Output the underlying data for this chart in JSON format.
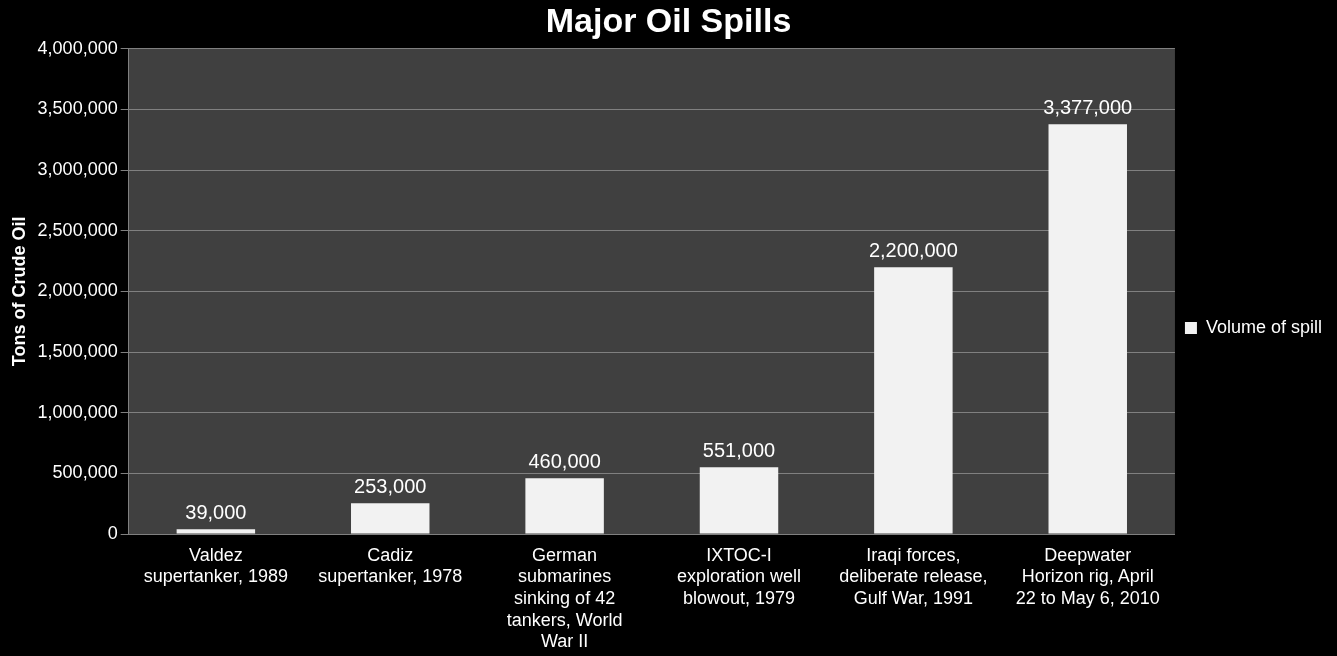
{
  "chart_data": {
    "type": "bar",
    "title": "Major Oil Spills",
    "ylabel": "Tons of Crude Oil",
    "categories": [
      "Valdez supertanker, 1989",
      "Cadiz supertanker, 1978",
      "German submarines sinking of 42 tankers, World War II",
      "IXTOC-I exploration well blowout, 1979",
      "Iraqi forces, deliberate release, Gulf War, 1991",
      "Deepwater Horizon rig, April 22 to May 6, 2010"
    ],
    "series": [
      {
        "name": "Volume of spill",
        "color": "#f2f2f2",
        "values": [
          39000,
          253000,
          460000,
          551000,
          2200000,
          3377000
        ],
        "value_labels": [
          "39,000",
          "253,000",
          "460,000",
          "551,000",
          "2,200,000",
          "3,377,000"
        ]
      }
    ],
    "ylim": [
      0,
      4000000
    ],
    "yticks": [
      0,
      {
        "value": 500000,
        "label": "500,000"
      },
      {
        "value": 1000000,
        "label": "1,000,000"
      },
      {
        "value": 1500000,
        "label": "1,500,000"
      },
      {
        "value": 2000000,
        "label": "2,000,000"
      },
      {
        "value": 2500000,
        "label": "2,500,000"
      },
      {
        "value": 3000000,
        "label": "3,000,000"
      },
      {
        "value": 3500000,
        "label": "3,500,000"
      },
      {
        "value": 4000000,
        "label": "4,000,000"
      }
    ],
    "grid": "y",
    "legend": "right"
  }
}
